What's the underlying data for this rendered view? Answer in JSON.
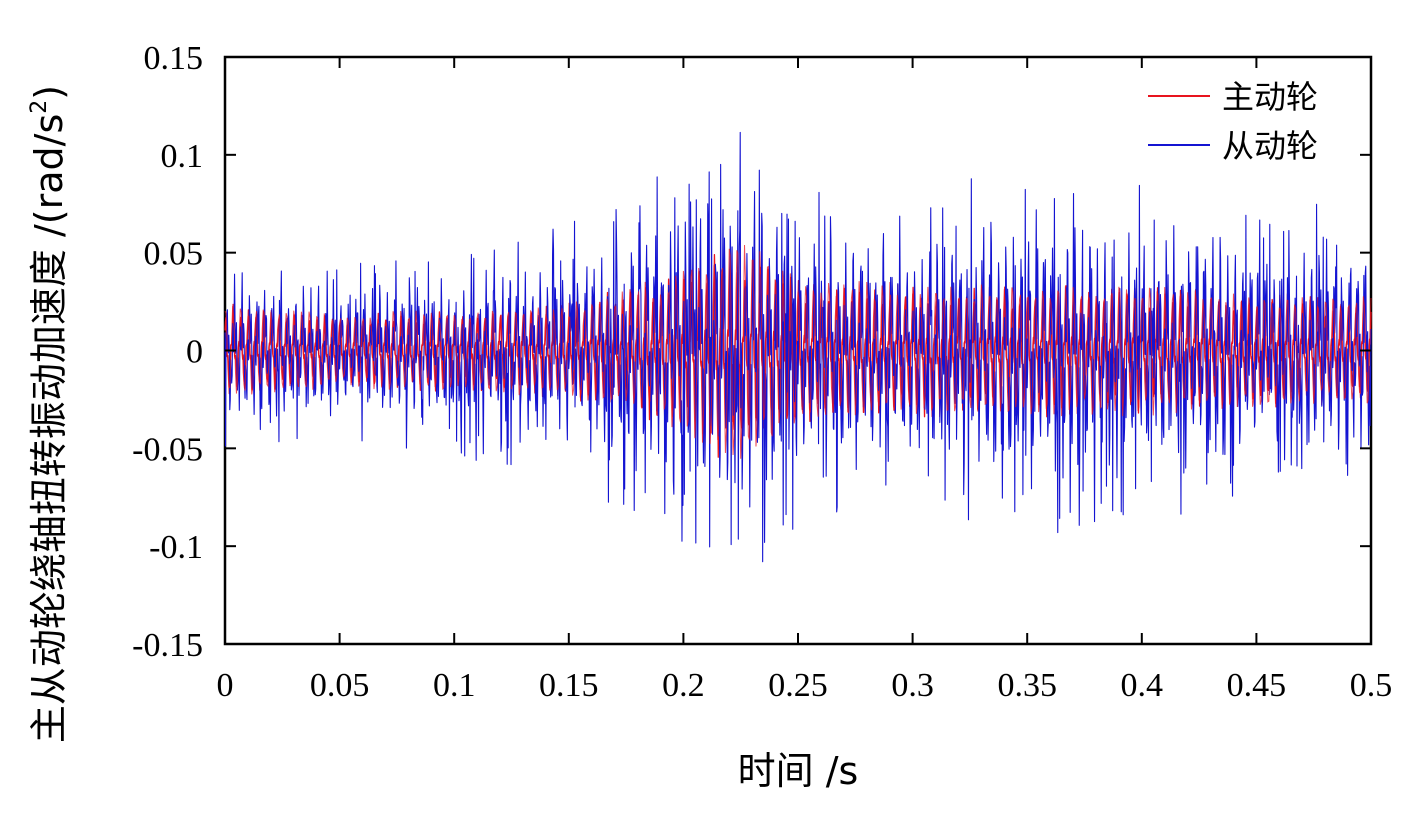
{
  "chart_data": {
    "type": "line",
    "title": "",
    "xlabel": "时间 /s",
    "ylabel_main": "主从动轮绕轴扭转振动加速度 /(rad/s",
    "ylabel_sup": "2",
    "ylabel_close": ")",
    "xlim": [
      0,
      0.5
    ],
    "ylim": [
      -0.15,
      0.15
    ],
    "x_ticks": [
      "0",
      "0.05",
      "0.1",
      "0.15",
      "0.2",
      "0.25",
      "0.3",
      "0.35",
      "0.4",
      "0.45",
      "0.5"
    ],
    "y_ticks": [
      "0.15",
      "0.1",
      "0.05",
      "0",
      "-0.05",
      "-0.1",
      "-0.15"
    ],
    "x_tick_values": [
      0,
      0.05,
      0.1,
      0.15,
      0.2,
      0.25,
      0.3,
      0.35,
      0.4,
      0.45,
      0.5
    ],
    "y_tick_values": [
      0.15,
      0.1,
      0.05,
      0,
      -0.05,
      -0.1,
      -0.15
    ],
    "grid": false,
    "legend_position": "top-right",
    "series": [
      {
        "name": "主动轮",
        "color": "#e8141e",
        "envelope": {
          "x": [
            0,
            0.05,
            0.1,
            0.15,
            0.18,
            0.2,
            0.22,
            0.24,
            0.25,
            0.3,
            0.35,
            0.4,
            0.45,
            0.5
          ],
          "amplitude": [
            0.025,
            0.02,
            0.022,
            0.025,
            0.035,
            0.045,
            0.06,
            0.05,
            0.04,
            0.035,
            0.035,
            0.035,
            0.03,
            0.03
          ]
        }
      },
      {
        "name": "从动轮",
        "color": "#1414d2",
        "envelope": {
          "x": [
            0,
            0.05,
            0.1,
            0.15,
            0.18,
            0.2,
            0.225,
            0.25,
            0.3,
            0.33,
            0.35,
            0.4,
            0.43,
            0.45,
            0.5
          ],
          "amplitude": [
            0.05,
            0.045,
            0.055,
            0.065,
            0.09,
            0.1,
            0.12,
            0.09,
            0.075,
            0.09,
            0.1,
            0.085,
            0.09,
            0.075,
            0.075
          ]
        }
      }
    ]
  }
}
